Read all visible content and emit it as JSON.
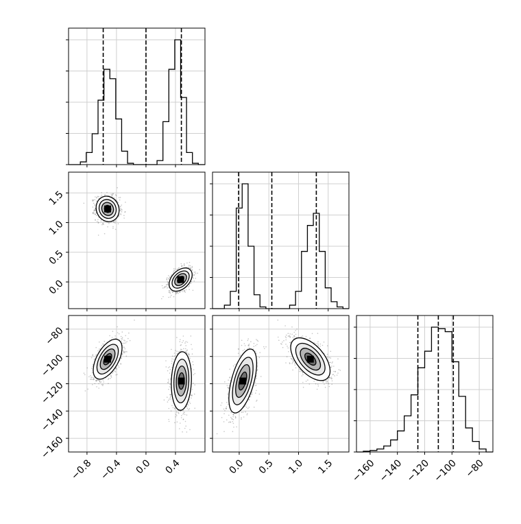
{
  "chart_data": {
    "type": "corner",
    "parameters": [
      {
        "range": [
          -1.05,
          0.8
        ],
        "ticks": [
          -0.8,
          -0.4,
          0.0,
          0.4
        ],
        "tick_labels": [
          "−0.8",
          "−0.4",
          "0.0",
          "0.4"
        ],
        "quantiles": [
          -0.58,
          0.0,
          0.48
        ],
        "hist": {
          "edges": [
            -1.05,
            -0.97,
            -0.89,
            -0.81,
            -0.73,
            -0.65,
            -0.57,
            -0.49,
            -0.41,
            -0.33,
            -0.25,
            -0.17,
            -0.09,
            -0.01,
            0.07,
            0.15,
            0.23,
            0.31,
            0.39,
            0.47,
            0.55,
            0.63,
            0.71,
            0.8
          ],
          "counts": [
            0,
            0,
            0.02,
            0.09,
            0.23,
            0.48,
            0.71,
            0.64,
            0.34,
            0.1,
            0.01,
            0,
            0,
            0,
            0,
            0.03,
            0.32,
            0.71,
            0.93,
            0.5,
            0.09,
            0.01,
            0
          ]
        }
      },
      {
        "range": [
          -0.45,
          1.85
        ],
        "ticks": [
          0.0,
          0.5,
          1.0,
          1.5
        ],
        "tick_labels": [
          "0.0",
          "0.5",
          "1.0",
          "1.5"
        ],
        "quantiles": [
          -0.01,
          0.55,
          1.3
        ],
        "hist": {
          "edges": [
            -0.45,
            -0.35,
            -0.25,
            -0.15,
            -0.05,
            0.05,
            0.15,
            0.25,
            0.35,
            0.45,
            0.55,
            0.65,
            0.75,
            0.85,
            0.95,
            1.05,
            1.15,
            1.25,
            1.35,
            1.45,
            1.55,
            1.65,
            1.75,
            1.85
          ],
          "counts": [
            0,
            0,
            0.02,
            0.1,
            0.58,
            0.72,
            0.36,
            0.08,
            0.01,
            0,
            0,
            0,
            0,
            0.02,
            0.1,
            0.33,
            0.48,
            0.55,
            0.33,
            0.12,
            0.04,
            0.01,
            0
          ]
        }
      },
      {
        "range": [
          -170,
          -70
        ],
        "ticks": [
          -160,
          -140,
          -120,
          -100,
          -80
        ],
        "tick_labels": [
          "−160",
          "−140",
          "−120",
          "−100",
          "−80"
        ],
        "quantiles": [
          -125,
          -110,
          -99
        ],
        "hist": {
          "edges": [
            -170,
            -165,
            -160,
            -155,
            -150,
            -145,
            -140,
            -135,
            -130,
            -125,
            -120,
            -115,
            -110,
            -105,
            -100,
            -95,
            -90,
            -85,
            -80,
            -75,
            -70
          ],
          "counts": [
            0,
            0.005,
            0.01,
            0.02,
            0.04,
            0.08,
            0.14,
            0.24,
            0.38,
            0.56,
            0.67,
            0.83,
            0.82,
            0.8,
            0.6,
            0.37,
            0.16,
            0.07,
            0.02,
            0
          ]
        }
      }
    ],
    "pairs": [
      {
        "x_param": 0,
        "y_param": 1,
        "clusters": [
          {
            "mean": [
              -0.52,
              1.23
            ],
            "sd": [
              0.08,
              0.11
            ],
            "rho": -0.1,
            "weight": 0.5
          },
          {
            "mean": [
              0.47,
              0.04
            ],
            "sd": [
              0.08,
              0.1
            ],
            "rho": 0.4,
            "weight": 0.5
          }
        ]
      },
      {
        "x_param": 0,
        "y_param": 2,
        "clusters": [
          {
            "mean": [
              -0.52,
              -102
            ],
            "sd": [
              0.1,
              7.5
            ],
            "rho": 0.55,
            "weight": 0.5
          },
          {
            "mean": [
              0.48,
              -118
            ],
            "sd": [
              0.07,
              11
            ],
            "rho": 0.1,
            "weight": 0.5
          }
        ]
      },
      {
        "x_param": 1,
        "y_param": 2,
        "clusters": [
          {
            "mean": [
              0.06,
              -118
            ],
            "sd": [
              0.12,
              12
            ],
            "rho": 0.55,
            "weight": 0.5
          },
          {
            "mean": [
              1.2,
              -102
            ],
            "sd": [
              0.17,
              8
            ],
            "rho": -0.55,
            "weight": 0.5
          }
        ]
      }
    ],
    "grid": true
  }
}
